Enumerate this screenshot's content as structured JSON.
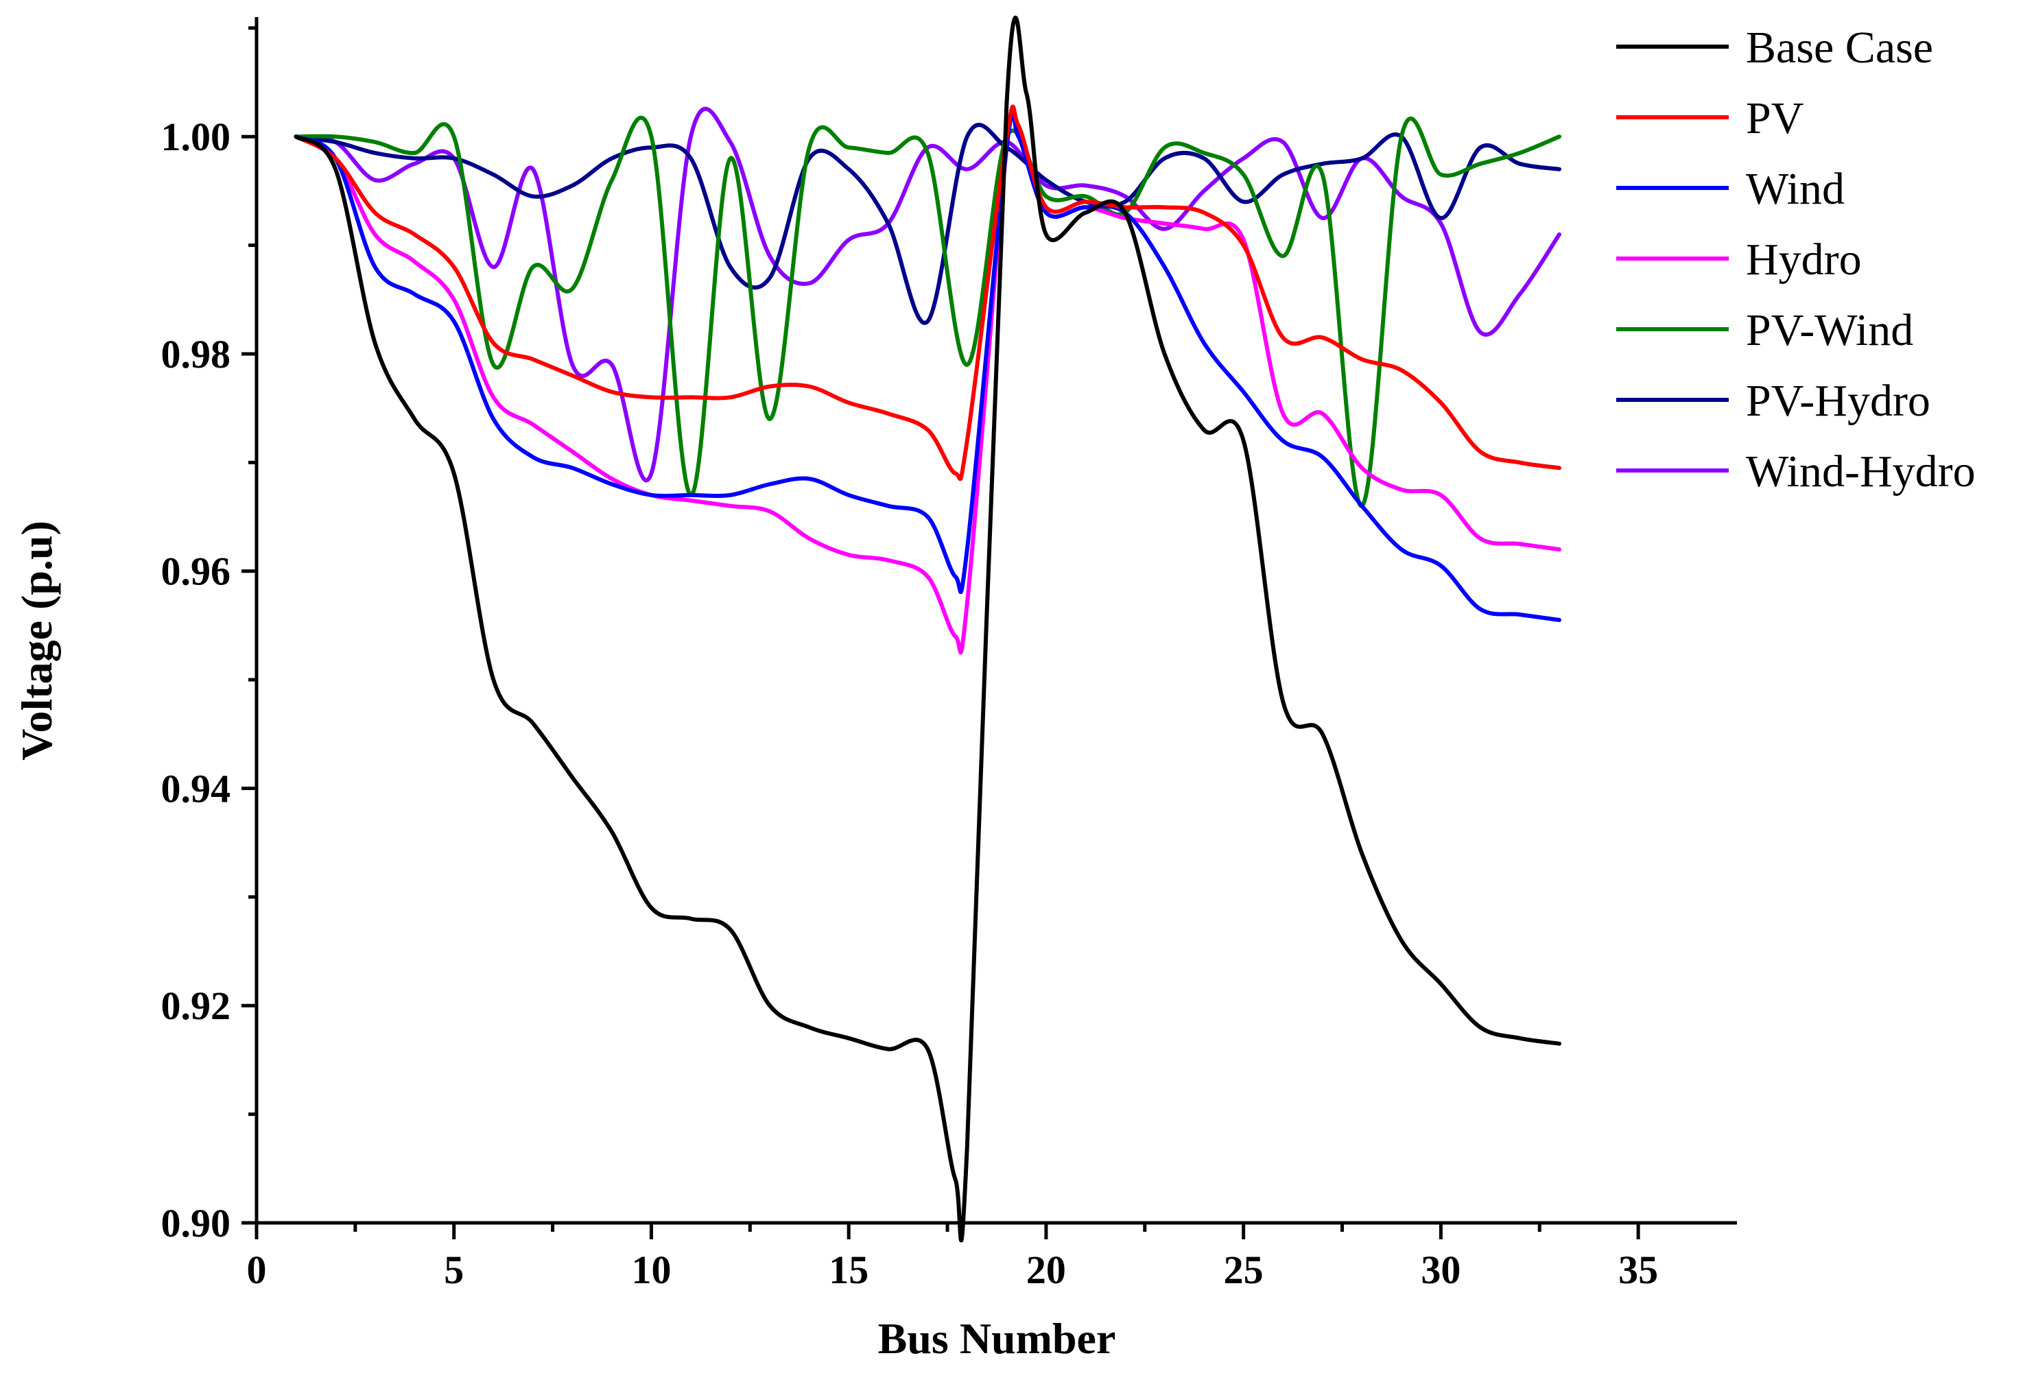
{
  "chart_data": {
    "type": "line",
    "title": "",
    "xlabel": "Bus Number",
    "ylabel": "Voltage (p.u)",
    "xlim": [
      0,
      37.5
    ],
    "ylim": [
      0.9,
      1.011
    ],
    "xticks": [
      0,
      5,
      10,
      15,
      20,
      25,
      30,
      35
    ],
    "xtick_labels": [
      "0",
      "5",
      "10",
      "15",
      "20",
      "25",
      "30",
      "35"
    ],
    "yticks": [
      0.9,
      0.92,
      0.94,
      0.96,
      0.98,
      1.0
    ],
    "ytick_labels": [
      "0.90",
      "0.92",
      "0.94",
      "0.96",
      "0.98",
      "1.00"
    ],
    "legend_position": "top-right",
    "series": [
      {
        "name": "Base Case",
        "color": "#000000",
        "x": [
          1,
          2,
          3,
          4,
          5,
          6,
          7,
          8,
          9,
          10,
          11,
          12,
          13,
          14,
          15,
          16,
          17,
          17.7,
          18,
          19,
          19.5,
          20,
          21,
          22,
          23,
          24,
          25,
          26,
          27,
          28,
          29,
          30,
          31,
          32,
          33
        ],
        "y": [
          1.0,
          0.997,
          0.981,
          0.974,
          0.969,
          0.95,
          0.946,
          0.941,
          0.936,
          0.929,
          0.928,
          0.927,
          0.92,
          0.918,
          0.917,
          0.916,
          0.916,
          0.904,
          0.907,
          1.003,
          1.004,
          0.991,
          0.993,
          0.993,
          0.98,
          0.973,
          0.972,
          0.948,
          0.945,
          0.934,
          0.926,
          0.922,
          0.918,
          0.917,
          0.9165
        ]
      },
      {
        "name": "PV",
        "color": "#ff0000",
        "x": [
          1,
          2,
          3,
          4,
          5,
          6,
          7,
          8,
          9,
          10,
          11,
          12,
          13,
          14,
          15,
          16,
          17,
          17.7,
          18,
          19,
          19.3,
          20,
          21,
          22,
          23,
          24,
          25,
          26,
          27,
          28,
          29,
          30,
          31,
          32,
          33
        ],
        "y": [
          1.0,
          0.998,
          0.993,
          0.991,
          0.988,
          0.981,
          0.9795,
          0.978,
          0.9765,
          0.976,
          0.976,
          0.976,
          0.977,
          0.977,
          0.9755,
          0.9745,
          0.973,
          0.969,
          0.972,
          1.0,
          1.001,
          0.9935,
          0.994,
          0.9935,
          0.9935,
          0.993,
          0.99,
          0.9815,
          0.9815,
          0.9795,
          0.9785,
          0.9755,
          0.971,
          0.97,
          0.9695
        ]
      },
      {
        "name": "Wind",
        "color": "#0000ff",
        "x": [
          1,
          2,
          3,
          4,
          5,
          6,
          7,
          8,
          9,
          10,
          11,
          12,
          13,
          14,
          15,
          16,
          17,
          17.7,
          18,
          19,
          19.3,
          20,
          21,
          22,
          23,
          24,
          25,
          26,
          27,
          28,
          29,
          30,
          31,
          32,
          33
        ],
        "y": [
          1.0,
          0.998,
          0.988,
          0.9855,
          0.983,
          0.974,
          0.9705,
          0.9695,
          0.968,
          0.967,
          0.967,
          0.967,
          0.968,
          0.9685,
          0.967,
          0.966,
          0.965,
          0.9595,
          0.962,
          0.999,
          1.0,
          0.993,
          0.9935,
          0.993,
          0.988,
          0.981,
          0.9765,
          0.972,
          0.9705,
          0.966,
          0.962,
          0.9605,
          0.9565,
          0.956,
          0.9555
        ]
      },
      {
        "name": "Hydro",
        "color": "#ff00ff",
        "x": [
          1,
          2,
          3,
          4,
          5,
          6,
          7,
          8,
          9,
          10,
          11,
          12,
          13,
          14,
          15,
          16,
          17,
          17.7,
          18,
          19,
          19.3,
          20,
          21,
          22,
          23,
          24,
          25,
          26,
          27,
          28,
          29,
          30,
          31,
          32,
          33
        ],
        "y": [
          1.0,
          0.998,
          0.991,
          0.9885,
          0.985,
          0.976,
          0.9735,
          0.971,
          0.9685,
          0.967,
          0.9665,
          0.966,
          0.9655,
          0.963,
          0.9615,
          0.961,
          0.9595,
          0.954,
          0.957,
          0.999,
          1.0,
          0.993,
          0.9935,
          0.9925,
          0.992,
          0.9915,
          0.9905,
          0.9745,
          0.9745,
          0.9695,
          0.9675,
          0.967,
          0.963,
          0.9625,
          0.962
        ]
      },
      {
        "name": "PV-Wind",
        "color": "#008000",
        "x": [
          1,
          2,
          3,
          4,
          5,
          6,
          7,
          8,
          9,
          10,
          11,
          12,
          13,
          14,
          15,
          16,
          17,
          18,
          19,
          20,
          21,
          22,
          23,
          24,
          25,
          26,
          27,
          28,
          29,
          30,
          31,
          32,
          33
        ],
        "y": [
          1.0,
          1.0,
          0.9995,
          0.9985,
          1.0,
          0.979,
          0.988,
          0.986,
          0.996,
          1.0,
          0.967,
          0.998,
          0.974,
          0.999,
          0.999,
          0.9985,
          0.9985,
          0.979,
          1.0,
          0.9945,
          0.9945,
          0.993,
          0.999,
          0.9985,
          0.9965,
          0.989,
          0.9965,
          0.966,
          1.0,
          0.9965,
          0.9975,
          0.9985,
          1.0
        ]
      },
      {
        "name": "PV-Hydro",
        "color": "#00008b",
        "x": [
          1,
          2,
          3,
          4,
          5,
          6,
          7,
          8,
          9,
          10,
          11,
          12,
          13,
          14,
          15,
          16,
          17,
          18,
          19,
          20,
          21,
          22,
          23,
          24,
          25,
          26,
          27,
          28,
          29,
          30,
          31,
          32,
          33
        ],
        "y": [
          1.0,
          0.9995,
          0.9985,
          0.998,
          0.998,
          0.9965,
          0.9945,
          0.9955,
          0.998,
          0.999,
          0.998,
          0.988,
          0.987,
          0.998,
          0.997,
          0.992,
          0.983,
          1.0,
          0.999,
          0.996,
          0.994,
          0.994,
          0.998,
          0.998,
          0.994,
          0.9965,
          0.9975,
          0.998,
          1.0,
          0.9925,
          0.999,
          0.9975,
          0.997
        ]
      },
      {
        "name": "Wind-Hydro",
        "color": "#8b00ff",
        "x": [
          1,
          2,
          3,
          4,
          5,
          6,
          7,
          8,
          9,
          10,
          11,
          12,
          13,
          14,
          15,
          16,
          17,
          18,
          19,
          20,
          21,
          22,
          23,
          24,
          25,
          26,
          27,
          28,
          29,
          30,
          31,
          32,
          33
        ],
        "y": [
          1.0,
          0.9995,
          0.996,
          0.9975,
          0.998,
          0.988,
          0.997,
          0.979,
          0.979,
          0.969,
          1.0,
          0.9995,
          0.989,
          0.9865,
          0.9905,
          0.992,
          0.999,
          0.997,
          0.9995,
          0.9955,
          0.9955,
          0.9945,
          0.9915,
          0.995,
          0.998,
          0.9995,
          0.9925,
          0.998,
          0.9945,
          0.992,
          0.982,
          0.9855,
          0.991
        ]
      }
    ]
  }
}
